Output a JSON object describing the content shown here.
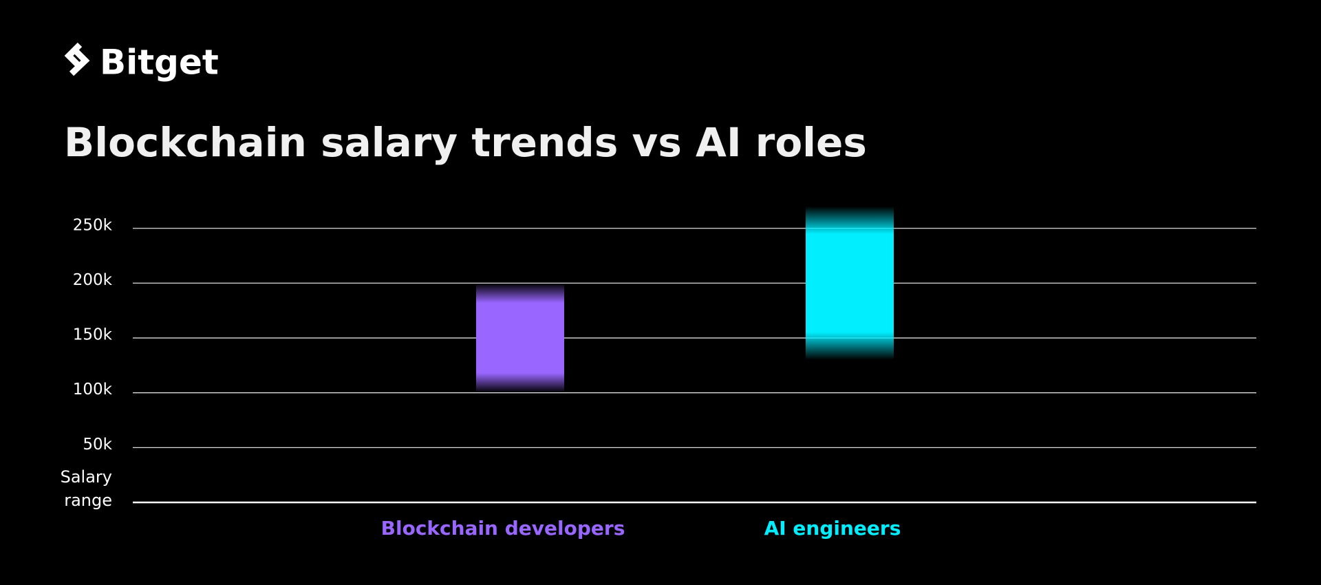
{
  "brand": "Bitget",
  "chart_data": {
    "type": "range_bar",
    "title": "Blockchain salary trends vs AI roles",
    "y_label": "Salary range",
    "categories": [
      "Blockchain developers",
      "AI engineers"
    ],
    "low": [
      100000,
      130000
    ],
    "high": [
      200000,
      270000
    ],
    "colors": [
      "#9966ff",
      "#00eeff"
    ],
    "ylim": [
      0,
      285000
    ],
    "yticks": [
      {
        "value": 50000,
        "label": "50k"
      },
      {
        "value": 100000,
        "label": "100k"
      },
      {
        "value": 150000,
        "label": "150k"
      },
      {
        "value": 200000,
        "label": "200k"
      },
      {
        "value": 250000,
        "label": "250k"
      }
    ],
    "grid": true
  }
}
